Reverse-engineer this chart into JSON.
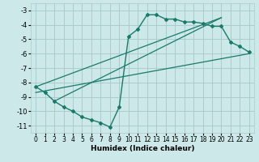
{
  "xlabel": "Humidex (Indice chaleur)",
  "ylabel": "",
  "xlim": [
    -0.5,
    23.5
  ],
  "ylim": [
    -11.5,
    -2.5
  ],
  "yticks": [
    -3,
    -4,
    -5,
    -6,
    -7,
    -8,
    -9,
    -10,
    -11
  ],
  "xticks": [
    0,
    1,
    2,
    3,
    4,
    5,
    6,
    7,
    8,
    9,
    10,
    11,
    12,
    13,
    14,
    15,
    16,
    17,
    18,
    19,
    20,
    21,
    22,
    23
  ],
  "bg_color": "#cce8e8",
  "grid_color": "#aacccc",
  "line_color": "#1a7a6a",
  "main_x": [
    0,
    1,
    2,
    3,
    4,
    5,
    6,
    7,
    8,
    9,
    10,
    11,
    12,
    13,
    14,
    15,
    16,
    17,
    18,
    19,
    20,
    21,
    22,
    23
  ],
  "main_y": [
    -8.3,
    -8.7,
    -9.3,
    -9.7,
    -10.0,
    -10.4,
    -10.6,
    -10.8,
    -11.1,
    -9.7,
    -4.8,
    -4.3,
    -3.3,
    -3.3,
    -3.6,
    -3.6,
    -3.8,
    -3.8,
    -3.9,
    -4.1,
    -4.1,
    -5.2,
    -5.5,
    -5.9
  ],
  "line1_x": [
    0,
    20
  ],
  "line1_y": [
    -8.3,
    -3.5
  ],
  "line2_x": [
    0,
    23
  ],
  "line2_y": [
    -8.7,
    -6.0
  ],
  "line3_x": [
    2,
    20
  ],
  "line3_y": [
    -9.3,
    -3.5
  ]
}
